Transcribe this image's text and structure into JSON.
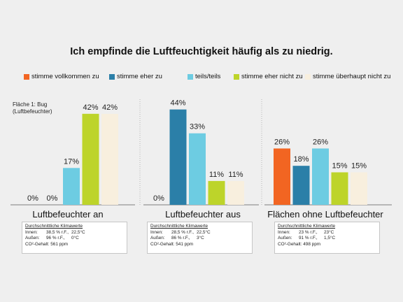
{
  "chart_data": {
    "type": "bar",
    "title": "Ich empfinde die Luftfeuchtigkeit häufig als zu niedrig.",
    "note": [
      "Fläche 1: Bug",
      "(Luftbefeuchter)"
    ],
    "series": [
      {
        "name": "stimme vollkommen zu",
        "color": "#f26522"
      },
      {
        "name": "stimme eher zu",
        "color": "#2b7fa8"
      },
      {
        "name": "teils/teils",
        "color": "#6dcce2"
      },
      {
        "name": "stimme eher nicht zu",
        "color": "#bdd42a"
      },
      {
        "name": "stimme überhaupt nicht zu",
        "color": "#f8efde"
      }
    ],
    "groups": [
      {
        "label": "Luftbefeuchter an",
        "values": [
          0,
          0,
          17,
          42,
          42
        ],
        "value_labels": [
          "0%",
          "0%",
          "17%",
          "42%",
          "42%"
        ],
        "info": {
          "heading": "Durchschnittliche Klimawerte",
          "rows": [
            {
              "label": "Innen:",
              "rh": "38,5 % r.F.,",
              "temp": "22,5°C"
            },
            {
              "label": "Außen:",
              "rh": "96 % r.F.,",
              "temp": "0°C"
            }
          ],
          "co2": "CO²-Gehalt: 561 ppm"
        }
      },
      {
        "label": "Luftbefeuchter aus",
        "values": [
          0,
          44,
          33,
          11,
          11
        ],
        "value_labels": [
          "0%",
          "44%",
          "33%",
          "11%",
          "11%"
        ],
        "info": {
          "heading": "Durchschnittliche Klimawerte",
          "rows": [
            {
              "label": "Innen:",
              "rh": "28,5 % r.F.,",
              "temp": "22,5°C"
            },
            {
              "label": "Außen:",
              "rh": "86 % r.F.,",
              "temp": "3°C"
            }
          ],
          "co2": "CO²-Gehalt: 541 ppm"
        }
      },
      {
        "label": "Flächen ohne Luftbefeuchter",
        "values": [
          26,
          18,
          26,
          15,
          15
        ],
        "value_labels": [
          "26%",
          "18%",
          "26%",
          "15%",
          "15%"
        ],
        "info": {
          "heading": "Durchschnittliche Klimawerte",
          "rows": [
            {
              "label": "Innen:",
              "rh": "23 % r.F.,",
              "temp": "23°C"
            },
            {
              "label": "Außen:",
              "rh": "91 % r.F.,",
              "temp": "1,5°C"
            }
          ],
          "co2": "CO²-Gehalt: 498 ppm"
        }
      }
    ],
    "ylim": [
      0,
      50
    ],
    "grid": false,
    "legend_position": "top"
  }
}
